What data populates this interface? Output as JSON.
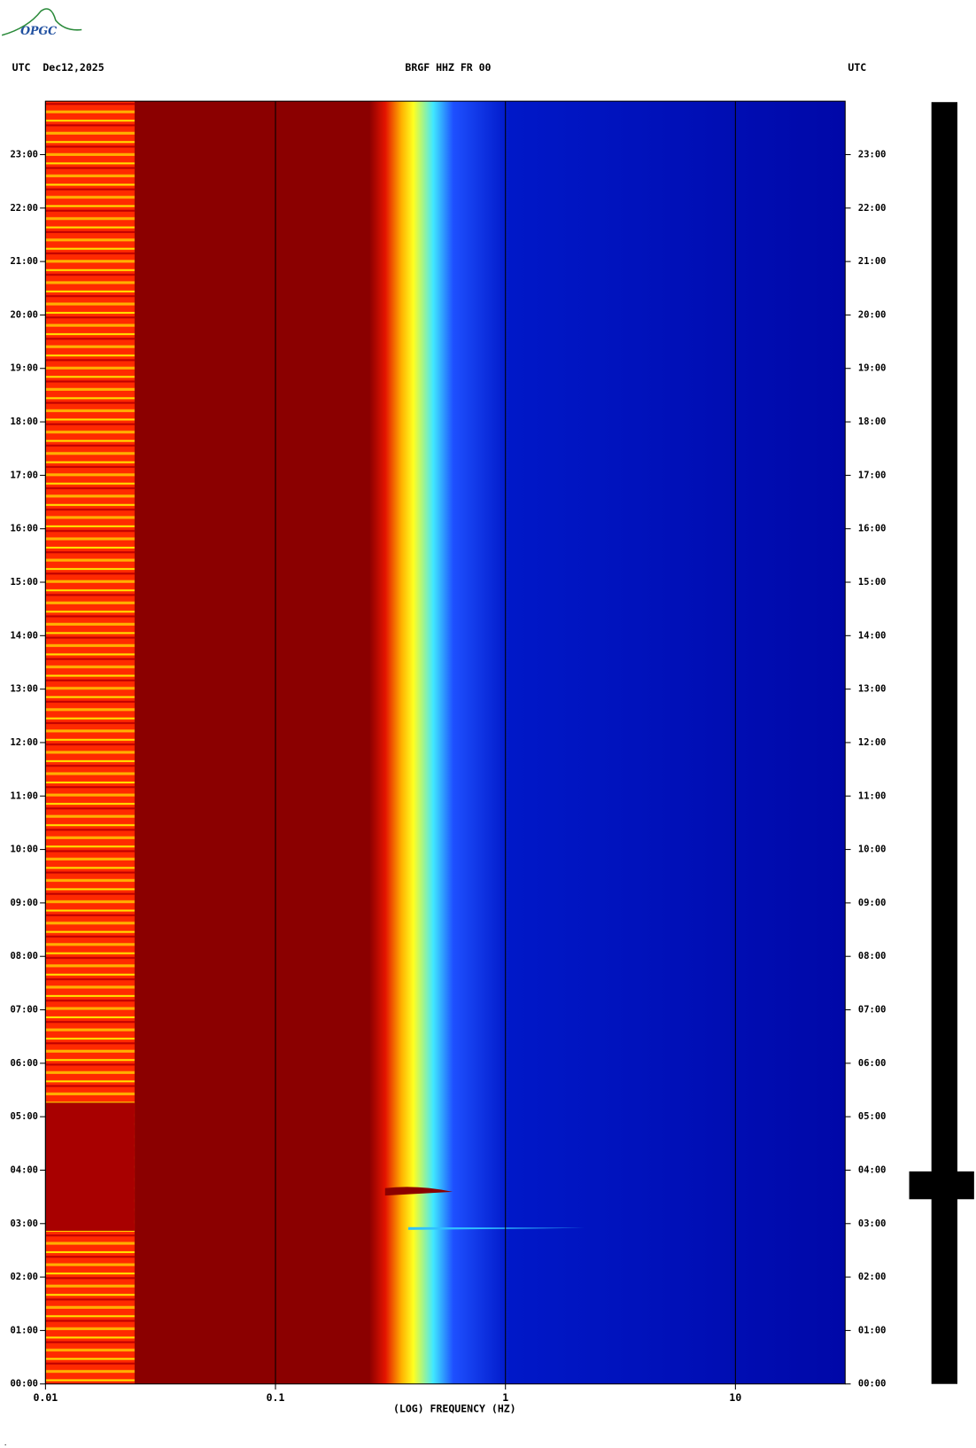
{
  "chart_data": {
    "type": "spectrogram",
    "logo": "OPGC",
    "title": "BRGF HHZ FR 00",
    "left_header": "UTC  Dec12,2025",
    "right_header": "UTC",
    "xlabel": "(LOG) FREQUENCY (HZ)",
    "xscale": "log",
    "xlim": [
      0.01,
      30
    ],
    "xticks": [
      {
        "value": 0.01,
        "label": "0.01"
      },
      0.1,
      1,
      10
    ],
    "ylim": [
      0,
      24
    ],
    "yticks": [
      {
        "value": 0,
        "label": "00:00"
      },
      {
        "value": 1,
        "label": "01:00"
      },
      {
        "value": 2,
        "label": "02:00"
      },
      {
        "value": 3,
        "label": "03:00"
      },
      {
        "value": 4,
        "label": "04:00"
      },
      {
        "value": 5,
        "label": "05:00"
      },
      {
        "value": 6,
        "label": "06:00"
      },
      {
        "value": 7,
        "label": "07:00"
      },
      {
        "value": 8,
        "label": "08:00"
      },
      {
        "value": 9,
        "label": "09:00"
      },
      {
        "value": 10,
        "label": "10:00"
      },
      {
        "value": 11,
        "label": "11:00"
      },
      {
        "value": 12,
        "label": "12:00"
      },
      {
        "value": 13,
        "label": "13:00"
      },
      {
        "value": 14,
        "label": "14:00"
      },
      {
        "value": 15,
        "label": "15:00"
      },
      {
        "value": 16,
        "label": "16:00"
      },
      {
        "value": 17,
        "label": "17:00"
      },
      {
        "value": 18,
        "label": "18:00"
      },
      {
        "value": 19,
        "label": "19:00"
      },
      {
        "value": 20,
        "label": "20:00"
      },
      {
        "value": 21,
        "label": "21:00"
      },
      {
        "value": 22,
        "label": "22:00"
      },
      {
        "value": 23,
        "label": "23:00"
      }
    ]
  }
}
